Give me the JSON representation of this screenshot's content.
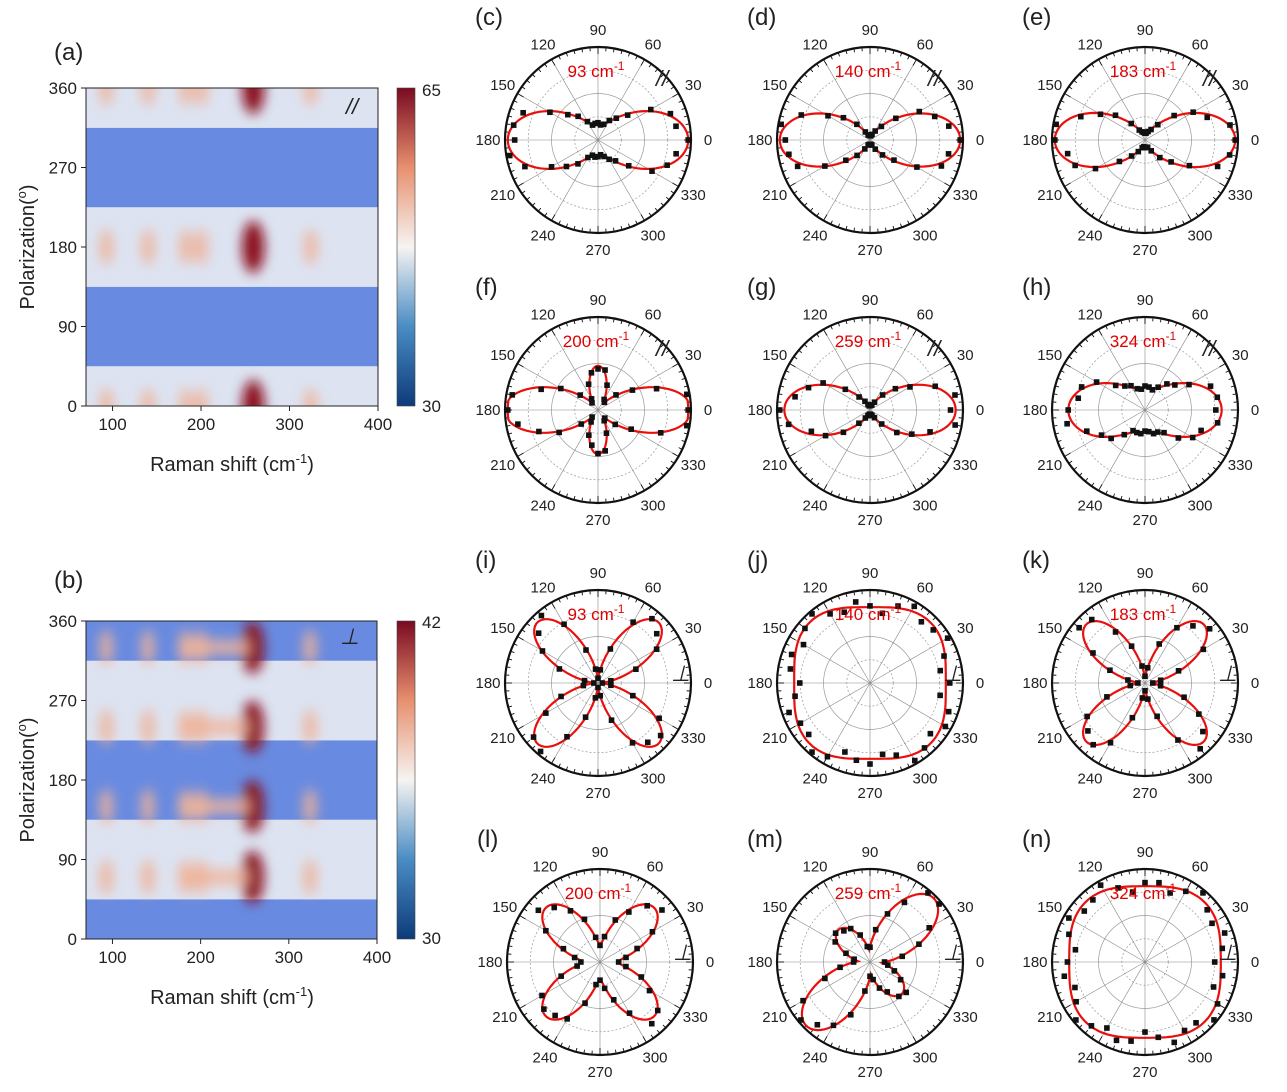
{
  "chart_data": [
    {
      "type": "heatmap",
      "label": "(a)",
      "xlabel": "Raman shift (cm",
      "xlabel_sup": "-1",
      "xlabel_end": ")",
      "ylabel": "Polarization(",
      "ylabel_sup": "o",
      "ylabel_end": ")",
      "xlim": [
        70,
        400
      ],
      "ylim": [
        0,
        360
      ],
      "xticks": [
        "100",
        "200",
        "300",
        "400"
      ],
      "yticks": [
        "0",
        "90",
        "180",
        "270",
        "360"
      ],
      "colorbar": {
        "min": "30",
        "max": "65"
      },
      "polarization": "//",
      "peaks_cm": [
        93,
        140,
        183,
        200,
        259,
        324
      ]
    },
    {
      "type": "heatmap",
      "label": "(b)",
      "xlabel": "Raman shift (cm",
      "xlabel_sup": "-1",
      "xlabel_end": ")",
      "ylabel": "Polarization(",
      "ylabel_sup": "o",
      "ylabel_end": ")",
      "xlim": [
        70,
        400
      ],
      "ylim": [
        0,
        360
      ],
      "xticks": [
        "100",
        "200",
        "300",
        "400"
      ],
      "yticks": [
        "0",
        "90",
        "180",
        "270",
        "360"
      ],
      "colorbar": {
        "min": "30",
        "max": "42"
      },
      "polarization": "⊥",
      "peaks_cm": [
        93,
        140,
        183,
        200,
        259,
        324
      ]
    }
  ],
  "polar": {
    "angle_ticks": [
      "0",
      "30",
      "60",
      "90",
      "120",
      "150",
      "180",
      "210",
      "240",
      "270",
      "300",
      "330"
    ],
    "panels": [
      {
        "label": "(c)",
        "freq": "93 cm",
        "sup": "-1",
        "mode": "//",
        "pattern": "parallel",
        "a": 1.0,
        "b": 0.18
      },
      {
        "label": "(d)",
        "freq": "140 cm",
        "sup": "-1",
        "mode": "//",
        "pattern": "parallel",
        "a": 1.0,
        "b": 0.05
      },
      {
        "label": "(e)",
        "freq": "183 cm",
        "sup": "-1",
        "mode": "//",
        "pattern": "parallel",
        "a": 1.0,
        "b": 0.08
      },
      {
        "label": "(f)",
        "freq": "200 cm",
        "sup": "-1",
        "mode": "//",
        "pattern": "cross-lobed",
        "a": 1.0,
        "b": 0.45
      },
      {
        "label": "(g)",
        "freq": "259 cm",
        "sup": "-1",
        "mode": "//",
        "pattern": "parallel",
        "a": 0.95,
        "b": 0.05
      },
      {
        "label": "(h)",
        "freq": "324 cm",
        "sup": "-1",
        "mode": "//",
        "pattern": "parallel",
        "a": 0.85,
        "b": 0.25
      },
      {
        "label": "(i)",
        "freq": "93 cm",
        "sup": "-1",
        "mode": "⊥",
        "pattern": "fourfold",
        "a": 0.95,
        "b": 0.05
      },
      {
        "label": "(j)",
        "freq": "140 cm",
        "sup": "-1",
        "mode": "⊥",
        "pattern": "square",
        "a": 0.9,
        "b": 0.72
      },
      {
        "label": "(k)",
        "freq": "183 cm",
        "sup": "-1",
        "mode": "⊥",
        "pattern": "fourfold",
        "a": 0.92,
        "b": 0.08
      },
      {
        "label": "(l)",
        "freq": "200 cm",
        "sup": "-1",
        "mode": "⊥",
        "pattern": "fourfold",
        "a": 0.85,
        "b": 0.2
      },
      {
        "label": "(m)",
        "freq": "259 cm",
        "sup": "-1",
        "mode": "⊥",
        "pattern": "twofold-diag",
        "a": 0.95,
        "b": 0.1
      },
      {
        "label": "(n)",
        "freq": "324 cm",
        "sup": "-1",
        "mode": "⊥",
        "pattern": "square",
        "a": 0.88,
        "b": 0.72
      }
    ]
  },
  "colors": {
    "fit": "#e8100c",
    "data": "#111111",
    "hot": "#8b0a1e",
    "cold": "#1c4f9a"
  }
}
